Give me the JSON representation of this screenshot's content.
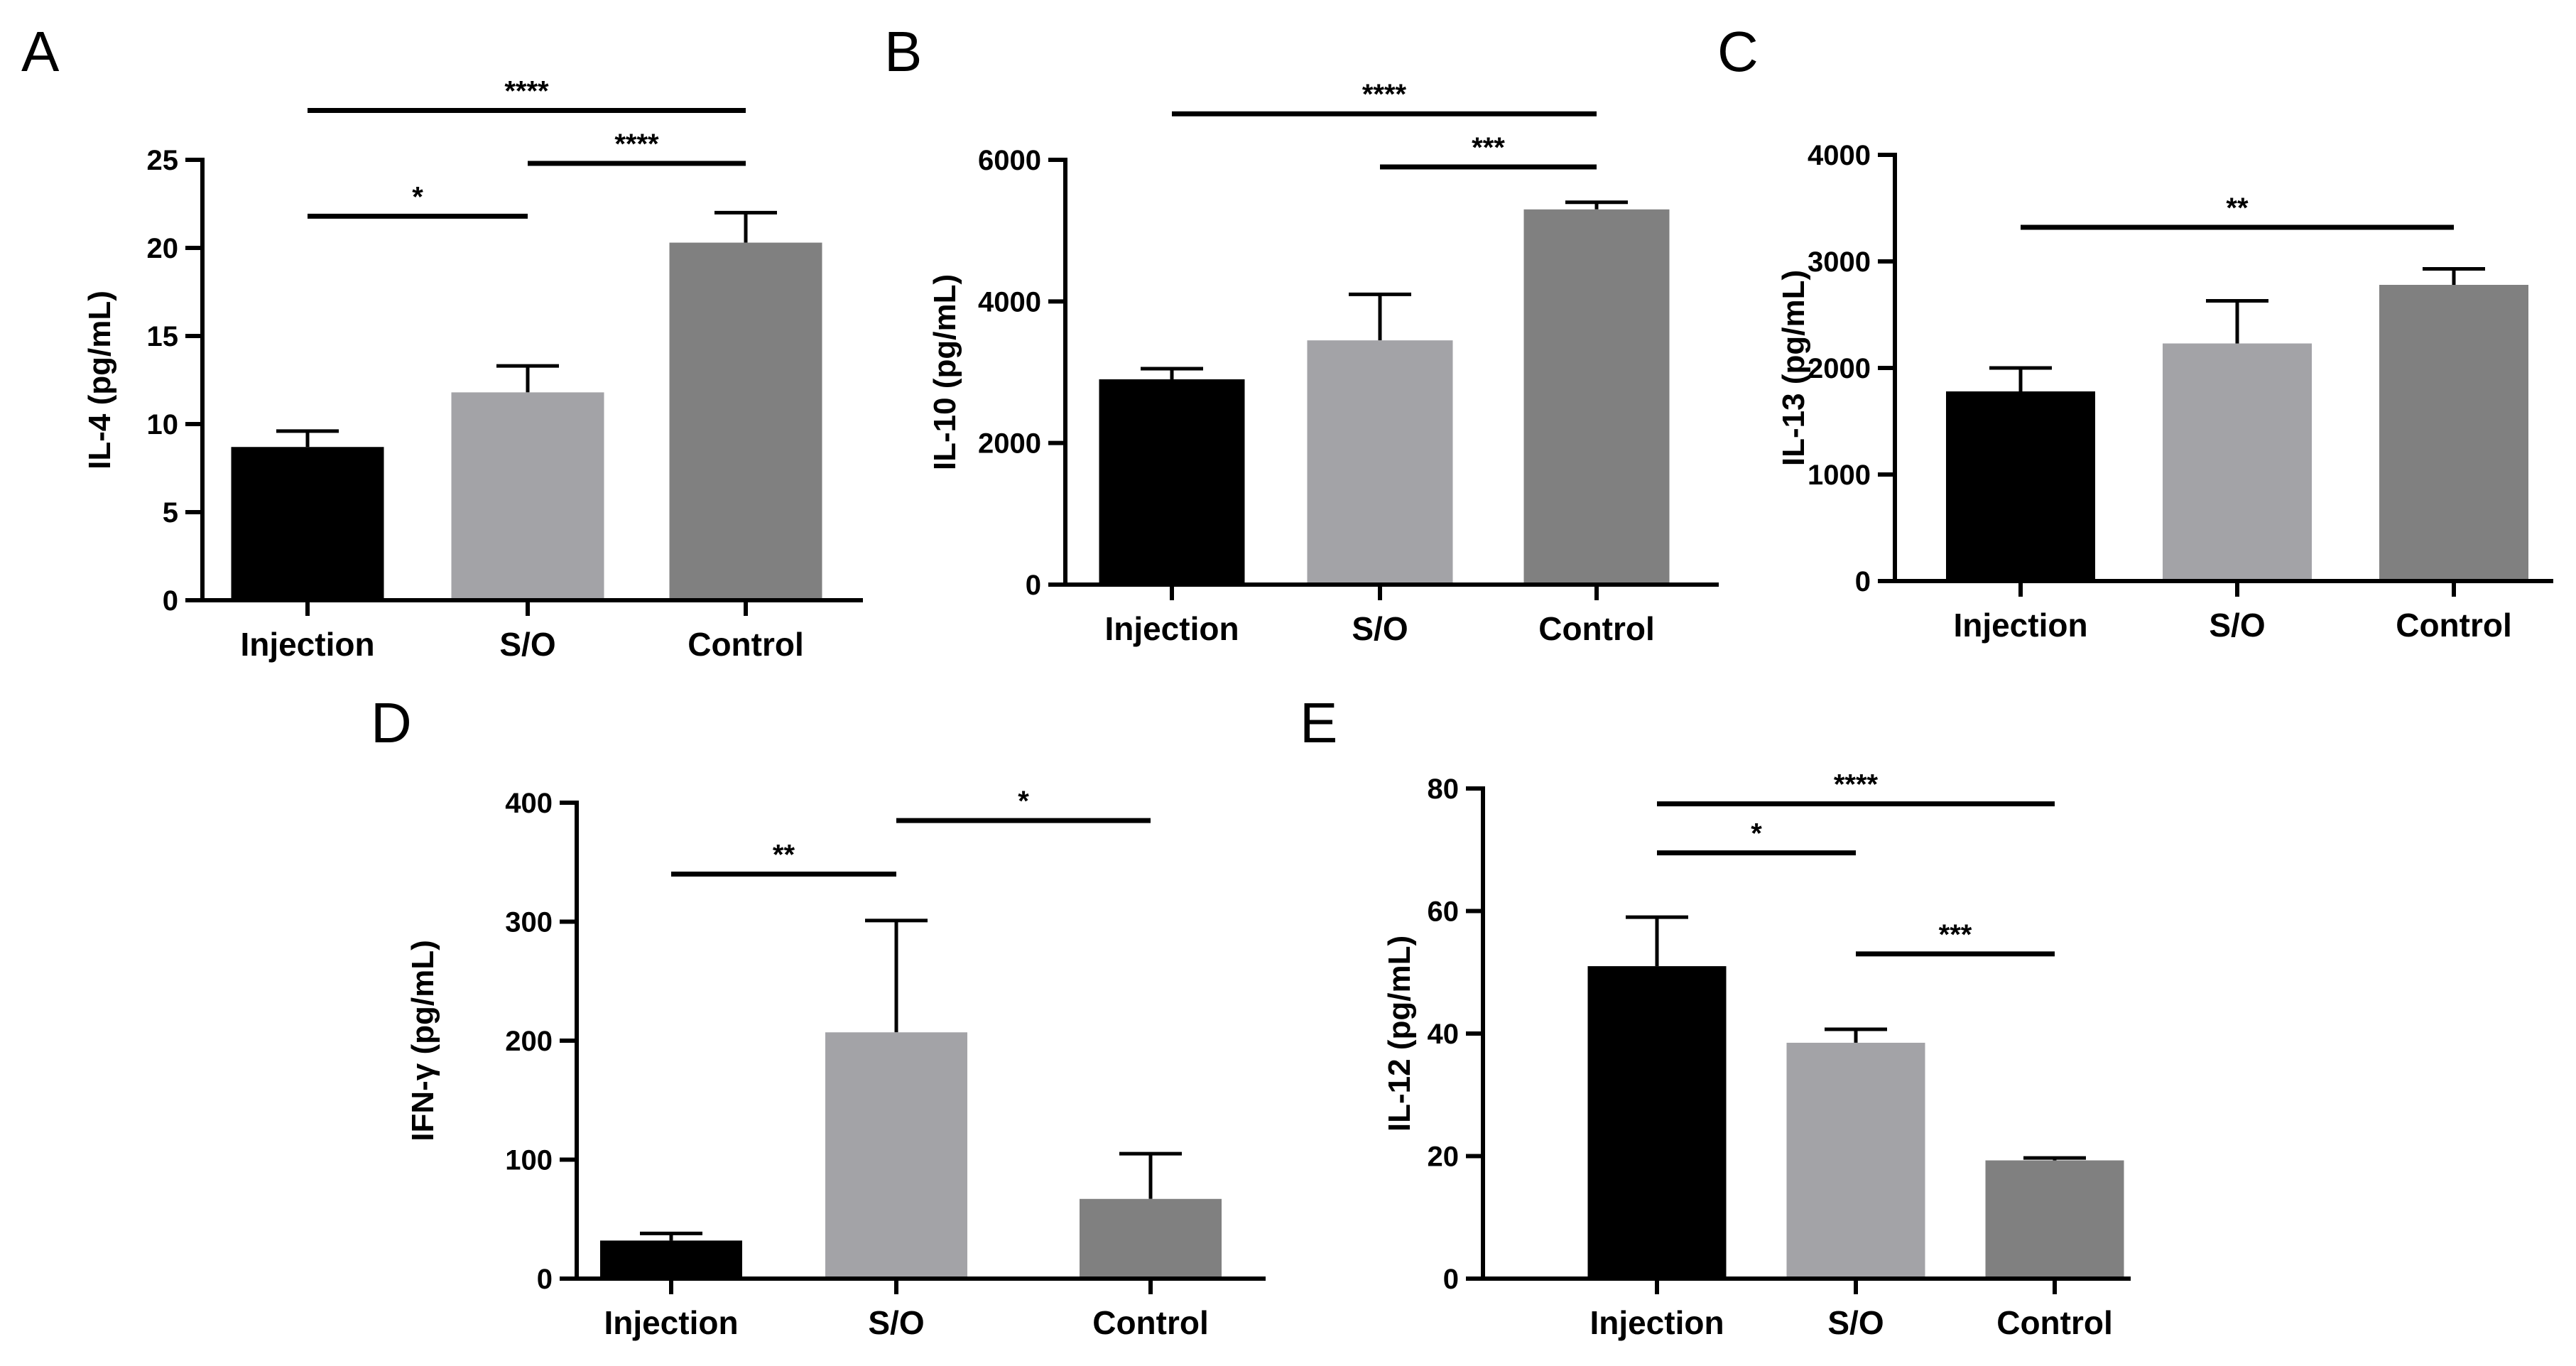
{
  "chart_data": [
    {
      "panel": "A",
      "type": "bar",
      "ylabel": "IL-4 (pg/mL)",
      "xlabel": "",
      "categories": [
        "Injection",
        "S/O",
        "Control"
      ],
      "values": [
        8.7,
        11.8,
        20.3
      ],
      "errors": [
        0.9,
        1.5,
        1.7
      ],
      "bar_colors": [
        "#000000",
        "#a3a3a7",
        "#808080"
      ],
      "ylim": [
        0,
        25
      ],
      "yticks": [
        0,
        5,
        10,
        15,
        20,
        25
      ],
      "ytick_labels": [
        "0",
        "5",
        "10",
        "15",
        "20",
        "25"
      ],
      "significance": [
        {
          "from": 0,
          "to": 2,
          "label": "****",
          "y": 27.8
        },
        {
          "from": 1,
          "to": 2,
          "label": "****",
          "y": 24.8
        },
        {
          "from": 0,
          "to": 1,
          "label": "*",
          "y": 21.8
        }
      ]
    },
    {
      "panel": "B",
      "type": "bar",
      "ylabel": "IL-10 (pg/mL)",
      "xlabel": "",
      "categories": [
        "Injection",
        "S/O",
        "Control"
      ],
      "values": [
        2900,
        3450,
        5300
      ],
      "errors": [
        150,
        650,
        100
      ],
      "bar_colors": [
        "#000000",
        "#a3a3a7",
        "#808080"
      ],
      "ylim": [
        0,
        6000
      ],
      "yticks": [
        0,
        2000,
        4000,
        6000
      ],
      "ytick_labels": [
        "0",
        "2000",
        "4000",
        "6000"
      ],
      "significance": [
        {
          "from": 0,
          "to": 2,
          "label": "****",
          "y": 6650
        },
        {
          "from": 1,
          "to": 2,
          "label": "***",
          "y": 5900
        }
      ]
    },
    {
      "panel": "C",
      "type": "bar",
      "ylabel": "IL-13 (pg/mL)",
      "xlabel": "",
      "categories": [
        "Injection",
        "S/O",
        "Control"
      ],
      "values": [
        1780,
        2230,
        2780
      ],
      "errors": [
        220,
        400,
        150
      ],
      "bar_colors": [
        "#000000",
        "#a3a3a7",
        "#808080"
      ],
      "ylim": [
        0,
        4000
      ],
      "yticks": [
        0,
        1000,
        2000,
        3000,
        4000
      ],
      "ytick_labels": [
        "0",
        "1000",
        "2000",
        "3000",
        "4000"
      ],
      "significance": [
        {
          "from": 0,
          "to": 2,
          "label": "**",
          "y": 3320
        }
      ]
    },
    {
      "panel": "D",
      "type": "bar",
      "ylabel": "IFN-γ (pg/mL)",
      "xlabel": "",
      "categories": [
        "Injection",
        "S/O",
        "Control"
      ],
      "values": [
        32,
        207,
        67
      ],
      "errors": [
        6,
        94,
        38
      ],
      "bar_colors": [
        "#000000",
        "#a3a3a7",
        "#808080"
      ],
      "ylim": [
        0,
        400
      ],
      "yticks": [
        0,
        100,
        200,
        300,
        400
      ],
      "ytick_labels": [
        "0",
        "100",
        "200",
        "300",
        "400"
      ],
      "significance": [
        {
          "from": 0,
          "to": 1,
          "label": "**",
          "y": 340
        },
        {
          "from": 1,
          "to": 2,
          "label": "*",
          "y": 385
        }
      ]
    },
    {
      "panel": "E",
      "type": "bar",
      "ylabel": "IL-12 (pg/mL)",
      "xlabel": "",
      "categories": [
        "Injection",
        "S/O",
        "Control"
      ],
      "values": [
        51,
        38.5,
        19.3
      ],
      "errors": [
        8,
        2.2,
        0.4
      ],
      "bar_colors": [
        "#000000",
        "#a3a3a7",
        "#808080"
      ],
      "ylim": [
        0,
        80
      ],
      "yticks": [
        0,
        20,
        40,
        60,
        80
      ],
      "ytick_labels": [
        "0",
        "20",
        "40",
        "60",
        "80"
      ],
      "significance": [
        {
          "from": 0,
          "to": 2,
          "label": "****",
          "y": 77.5
        },
        {
          "from": 0,
          "to": 1,
          "label": "*",
          "y": 69.5
        },
        {
          "from": 1,
          "to": 2,
          "label": "***",
          "y": 53
        }
      ]
    }
  ]
}
